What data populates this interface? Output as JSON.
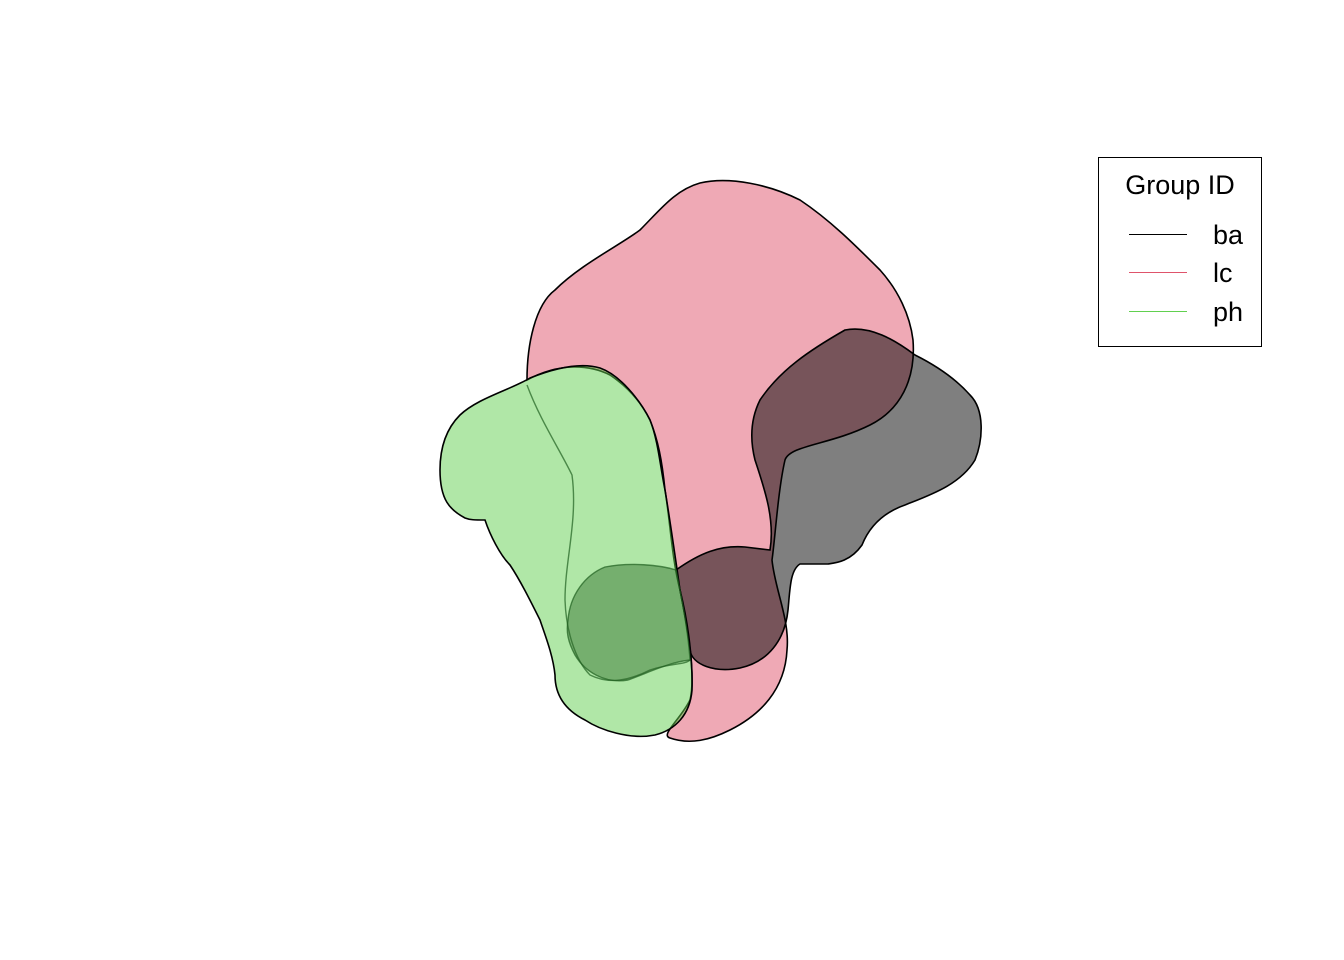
{
  "chart_data": {
    "type": "area",
    "title": "",
    "xlabel": "",
    "ylabel": "",
    "grid": false,
    "axes_shown": false,
    "legend_placement": "top-right",
    "legend_title": "Group ID",
    "series": [
      {
        "name": "ba",
        "color": "#000000",
        "fill": "#808080",
        "fill_opacity": 0.5
      },
      {
        "name": "lc",
        "color": "#DF536B",
        "fill": "#DF536B",
        "fill_opacity": 0.5
      },
      {
        "name": "ph",
        "color": "#61D04F",
        "fill": "#61D04F",
        "fill_opacity": 0.5
      }
    ]
  }
}
